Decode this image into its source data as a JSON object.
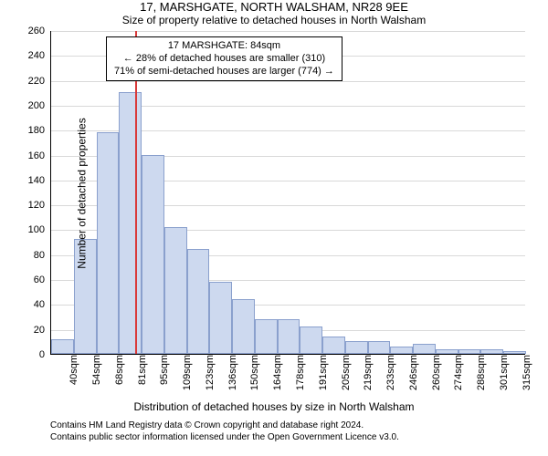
{
  "title_line1": "17, MARSHGATE, NORTH WALSHAM, NR28 9EE",
  "title_line2": "Size of property relative to detached houses in North Walsham",
  "axis": {
    "ylabel": "Number of detached properties",
    "xlabel": "Distribution of detached houses by size in North Walsham",
    "ylim": [
      0,
      260
    ],
    "ytick_step": 20,
    "yticks": [
      0,
      20,
      40,
      60,
      80,
      100,
      120,
      140,
      160,
      180,
      200,
      220,
      240,
      260
    ]
  },
  "chart": {
    "type": "histogram",
    "bar_fill": "#cdd9ef",
    "bar_stroke": "#8aa0cd",
    "grid_color": "#d9d9d9",
    "background_color": "#ffffff",
    "marker_color": "#d93a3a",
    "marker_value": 84,
    "categories": [
      "40sqm",
      "54sqm",
      "68sqm",
      "81sqm",
      "95sqm",
      "109sqm",
      "123sqm",
      "136sqm",
      "150sqm",
      "164sqm",
      "178sqm",
      "191sqm",
      "205sqm",
      "219sqm",
      "233sqm",
      "246sqm",
      "260sqm",
      "274sqm",
      "288sqm",
      "301sqm",
      "315sqm"
    ],
    "values": [
      12,
      92,
      178,
      210,
      160,
      102,
      84,
      58,
      44,
      28,
      28,
      22,
      14,
      10,
      10,
      6,
      8,
      4,
      4,
      4,
      2
    ]
  },
  "annotation": {
    "line1": "17 MARSHGATE: 84sqm",
    "line2": "← 28% of detached houses are smaller (310)",
    "line3": "71% of semi-detached houses are larger (774) →"
  },
  "footer": {
    "line1": "Contains HM Land Registry data © Crown copyright and database right 2024.",
    "line2": "Contains public sector information licensed under the Open Government Licence v3.0."
  },
  "fonts": {
    "title1_size": 13,
    "title2_size": 12,
    "axis_label_size": 12,
    "tick_size": 11,
    "anno_size": 11,
    "footer_size": 10
  }
}
